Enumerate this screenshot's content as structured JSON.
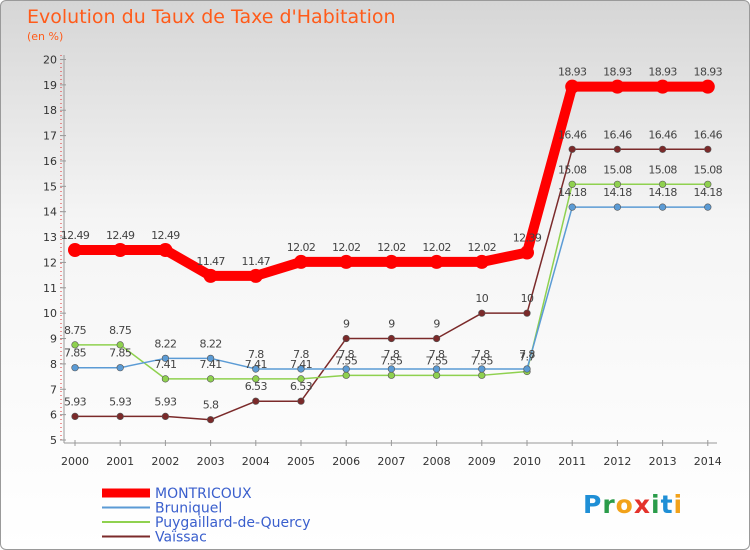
{
  "title": "Evolution du Taux de Taxe d'Habitation",
  "subtitle": "(en %)",
  "logo": {
    "text": "Proxiti"
  },
  "chart_data": {
    "type": "line",
    "title": "Evolution du Taux de Taxe d'Habitation",
    "ylabel": "(en %)",
    "x": [
      "2000",
      "2001",
      "2002",
      "2003",
      "2004",
      "2005",
      "2006",
      "2007",
      "2008",
      "2009",
      "2010",
      "2011",
      "2012",
      "2013",
      "2014"
    ],
    "yticks": [
      "5",
      "6",
      "7",
      "8",
      "9",
      "10",
      "11",
      "12",
      "13",
      "14",
      "15",
      "16",
      "17",
      "18",
      "19",
      "20"
    ],
    "ylim": [
      5,
      20
    ],
    "grid": false,
    "legend_position": "bottom-left",
    "series": [
      {
        "name": "MONTRICOUX",
        "color": "#ff0000",
        "values": [
          12.49,
          12.49,
          12.49,
          11.47,
          11.47,
          12.02,
          12.02,
          12.02,
          12.02,
          12.02,
          12.39,
          18.93,
          18.93,
          18.93,
          18.93
        ],
        "labels": [
          "12.49",
          "12.49",
          "12.49",
          "11.47",
          "11.47",
          "12.02",
          "12.02",
          "12.02",
          "12.02",
          "12.02",
          "12.39",
          "18.93",
          "18.93",
          "18.93",
          "18.93"
        ]
      },
      {
        "name": "Bruniquel",
        "color": "#5b9bd5",
        "values": [
          7.85,
          7.85,
          8.22,
          8.22,
          7.8,
          7.8,
          7.8,
          7.8,
          7.8,
          7.8,
          7.8,
          14.18,
          14.18,
          14.18,
          14.18
        ],
        "labels": [
          "7.85",
          "7.85",
          "8.22",
          "8.22",
          "7.8",
          "7.8",
          "7.8",
          "7.8",
          "7.8",
          "7.8",
          "7.8",
          "14.18",
          "14.18",
          "14.18",
          "14.18"
        ]
      },
      {
        "name": "Puygaillard-de-Quercy",
        "color": "#8fd14f",
        "values": [
          8.75,
          8.75,
          7.41,
          7.41,
          7.41,
          7.41,
          7.55,
          7.55,
          7.55,
          7.55,
          7.7,
          15.08,
          15.08,
          15.08,
          15.08
        ],
        "labels": [
          "8.75",
          "8.75",
          "7.41",
          "7.41",
          "7.41",
          "7.41",
          "7.55",
          "7.55",
          "7.55",
          "7.55",
          "7.7",
          "15.08",
          "15.08",
          "15.08",
          "15.08"
        ]
      },
      {
        "name": "Vaïssac",
        "color": "#7b2a2a",
        "values": [
          5.93,
          5.93,
          5.93,
          5.8,
          6.53,
          6.53,
          9,
          9,
          9,
          10,
          10,
          16.46,
          16.46,
          16.46,
          16.46
        ],
        "labels": [
          "5.93",
          "5.93",
          "5.93",
          "5.8",
          "6.53",
          "6.53",
          "9",
          "9",
          "9",
          "10",
          "10",
          "16.46",
          "16.46",
          "16.46",
          "16.46"
        ]
      }
    ]
  }
}
